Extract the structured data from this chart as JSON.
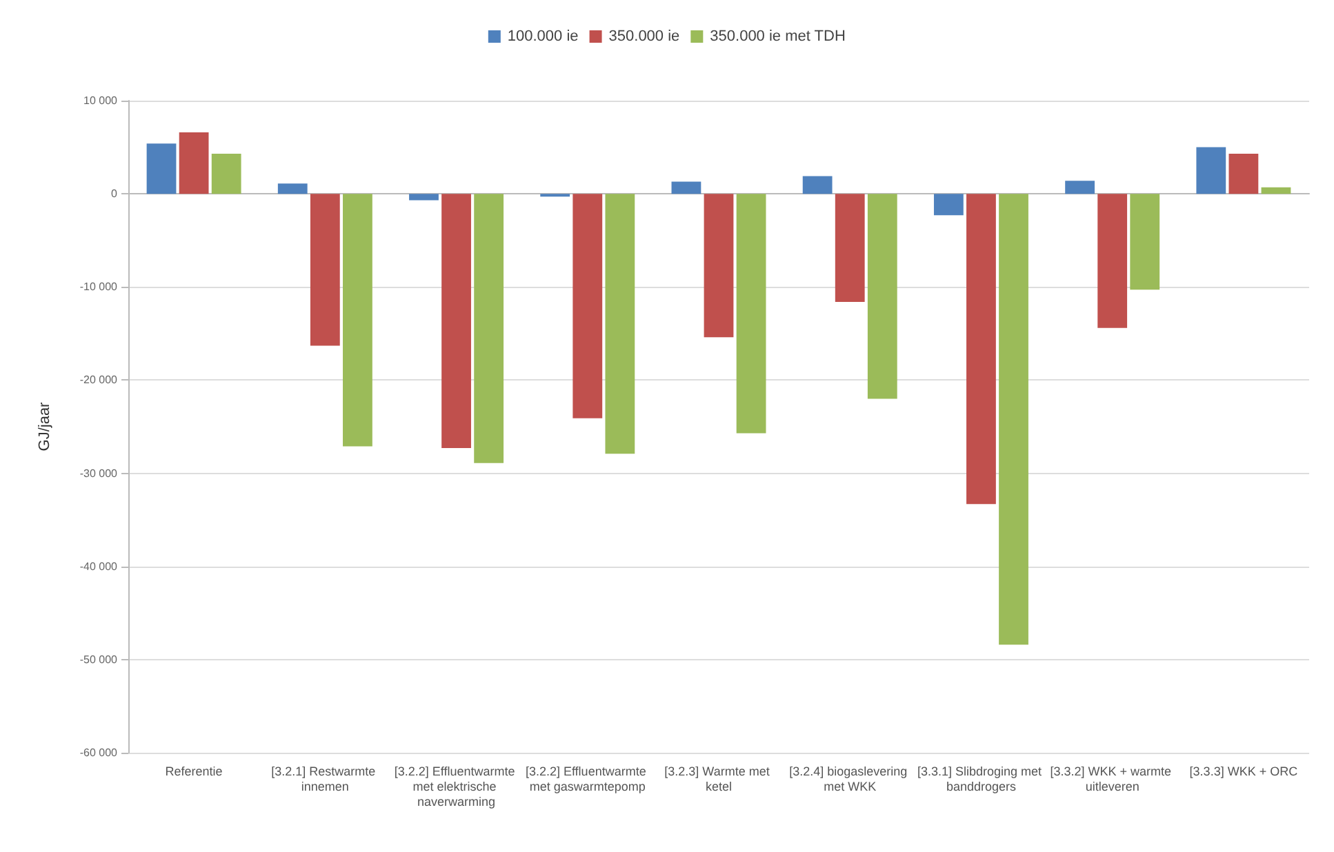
{
  "chart_data": {
    "type": "bar",
    "ylabel": "GJ/jaar",
    "categories": [
      "Referentie",
      "[3.2.1] Restwarmte innemen",
      "[3.2.2] Effluentwarmte met elektrische naverwarming",
      "[3.2.2] Effluentwarmte met gaswarmtepomp",
      "[3.2.3] Warmte met ketel",
      "[3.2.4] biogaslevering met WKK",
      "[3.3.1] Slibdroging met banddrogers",
      "[3.3.2] WKK + warmte uitleveren",
      "[3.3.3] WKK + ORC"
    ],
    "series": [
      {
        "name": "100.000 ie",
        "color": "#4f81bd",
        "values": [
          5400,
          1100,
          -700,
          -300,
          1300,
          1900,
          -2300,
          1400,
          5000
        ]
      },
      {
        "name": "350.000 ie",
        "color": "#c0504d",
        "values": [
          6600,
          -16300,
          -27300,
          -24100,
          -15400,
          -11600,
          -33300,
          -14400,
          4300
        ]
      },
      {
        "name": "350.000 ie met TDH",
        "color": "#9bbb59",
        "values": [
          4300,
          -27100,
          -28900,
          -27900,
          -25700,
          -22000,
          -48400,
          -10300,
          700
        ]
      }
    ],
    "ylim": [
      -60000,
      10000
    ],
    "yticks": [
      {
        "value": -60000,
        "label": "-60 000"
      },
      {
        "value": -50000,
        "label": "-50 000"
      },
      {
        "value": -40000,
        "label": "-40 000"
      },
      {
        "value": -30000,
        "label": "-30 000"
      },
      {
        "value": -20000,
        "label": "-20 000"
      },
      {
        "value": -10000,
        "label": "-10 000"
      },
      {
        "value": 0,
        "label": "0"
      },
      {
        "value": 10000,
        "label": "10 000"
      }
    ],
    "grid": "y",
    "legend": "top"
  }
}
